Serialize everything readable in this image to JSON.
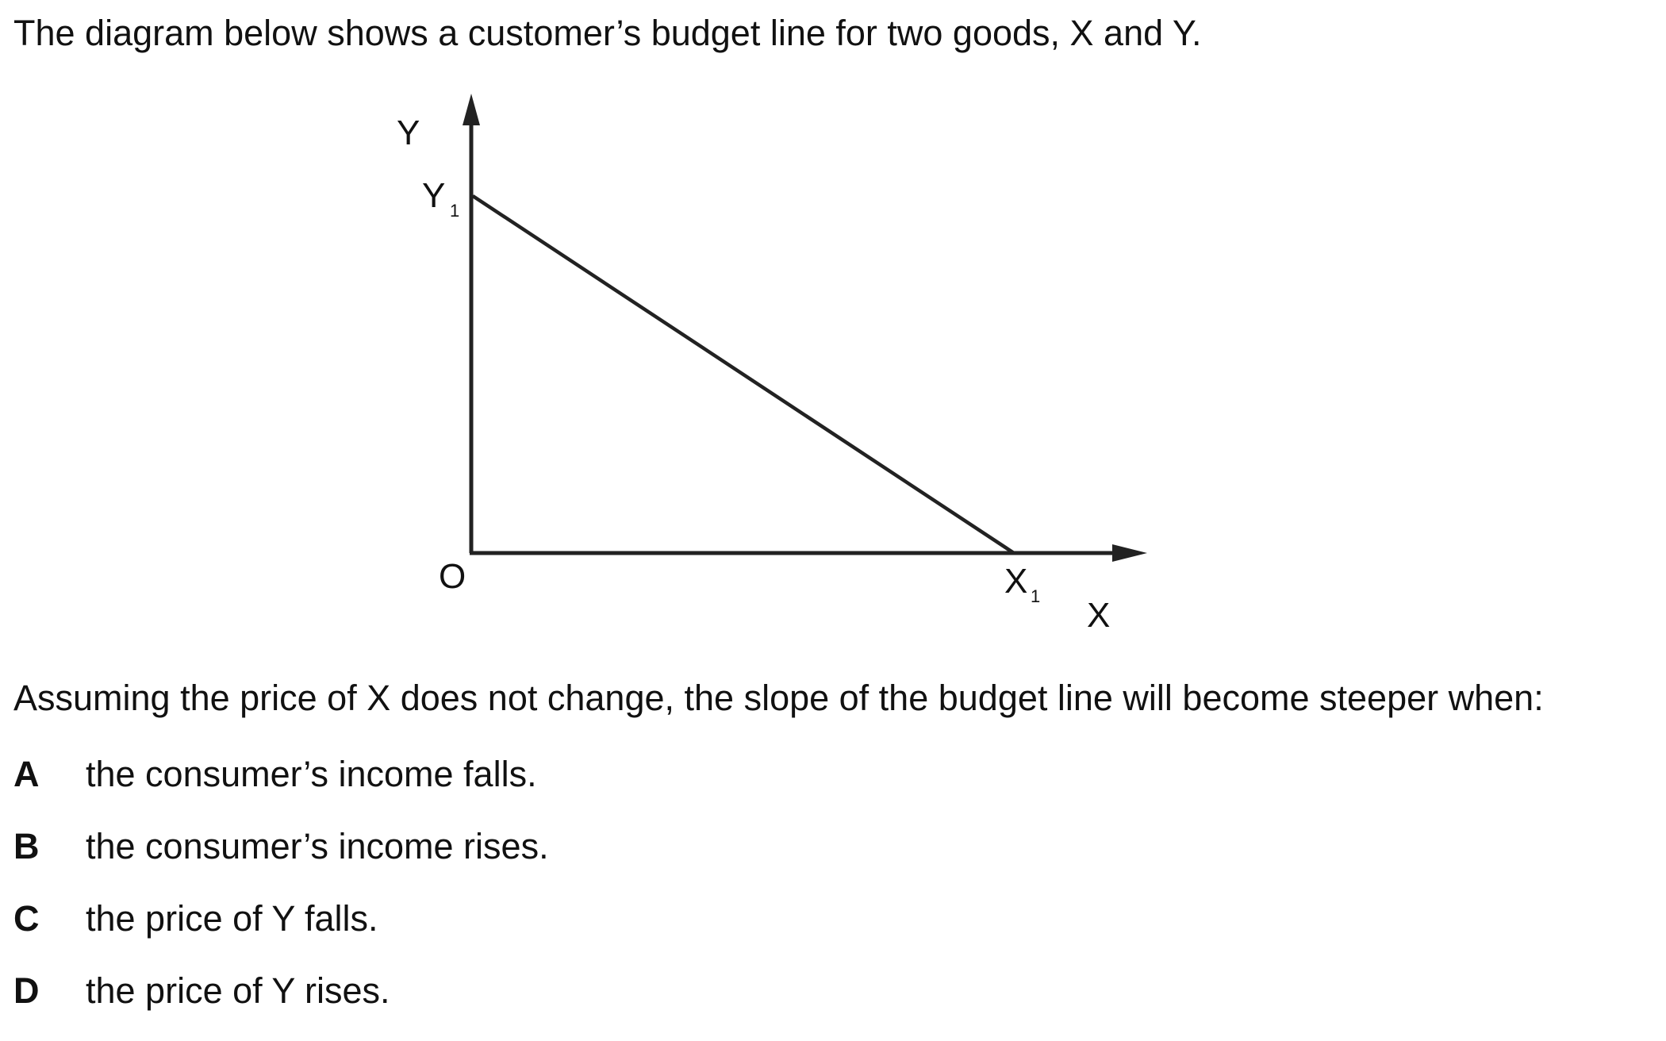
{
  "intro": "The diagram below shows a customer’s budget line for two goods, X and Y.",
  "diagram": {
    "y_axis_label": "Y",
    "x_axis_label": "X",
    "origin_label": "O",
    "y_intercept_label": "Y",
    "y_intercept_subscript": "1",
    "x_intercept_label": "X",
    "x_intercept_subscript": "1"
  },
  "question": "Assuming the price of X does not change, the slope of the budget line will become steeper when:",
  "options": [
    {
      "letter": "A",
      "text": "the consumer’s income falls."
    },
    {
      "letter": "B",
      "text": "the consumer’s income rises."
    },
    {
      "letter": "C",
      "text": "the price of Y falls."
    },
    {
      "letter": "D",
      "text": "the price of Y rises."
    }
  ]
}
